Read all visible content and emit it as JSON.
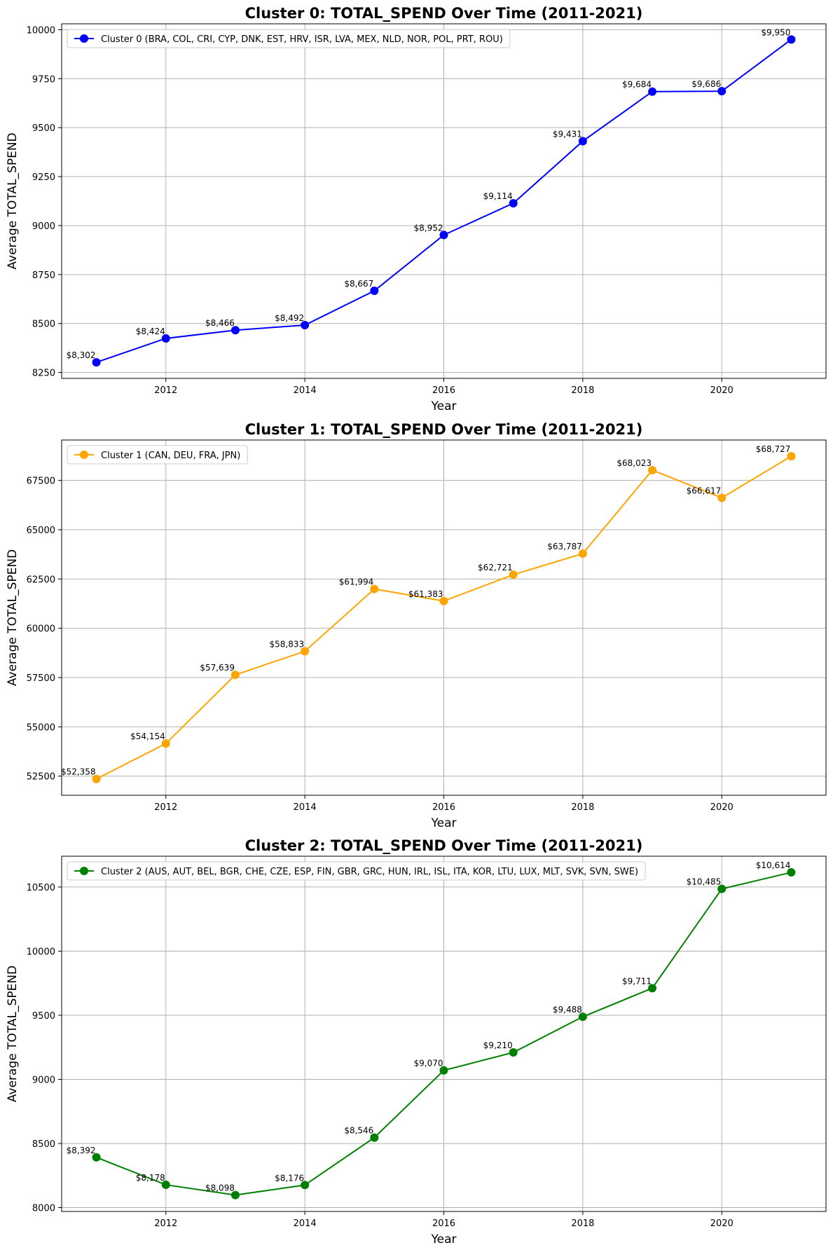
{
  "chart_data": [
    {
      "type": "line",
      "title": "Cluster 0: TOTAL_SPEND Over Time (2011-2021)",
      "xlabel": "Year",
      "ylabel": "Average TOTAL_SPEND",
      "xlim": [
        2010.5,
        2021.5
      ],
      "ylim": [
        8220,
        10030
      ],
      "xticks": [
        2012,
        2014,
        2016,
        2018,
        2020
      ],
      "yticks": [
        8250,
        8500,
        8750,
        9000,
        9250,
        9500,
        9750,
        10000
      ],
      "grid": true,
      "legend_position": "top-left",
      "color": "#0000ff",
      "series": [
        {
          "name": "Cluster 0 (BRA, COL, CRI, CYP, DNK, EST, HRV, ISR, LVA, MEX, NLD, NOR, POL, PRT, ROU)",
          "x": [
            2011,
            2012,
            2013,
            2014,
            2015,
            2016,
            2017,
            2018,
            2019,
            2020,
            2021
          ],
          "values": [
            8302,
            8424,
            8466,
            8492,
            8667,
            8952,
            9114,
            9431,
            9684,
            9686,
            9950
          ],
          "labels": [
            "$8,302",
            "$8,424",
            "$8,466",
            "$8,492",
            "$8,667",
            "$8,952",
            "$9,114",
            "$9,431",
            "$9,684",
            "$9,686",
            "$9,950"
          ]
        }
      ]
    },
    {
      "type": "line",
      "title": "Cluster 1: TOTAL_SPEND Over Time (2011-2021)",
      "xlabel": "Year",
      "ylabel": "Average TOTAL_SPEND",
      "xlim": [
        2010.5,
        2021.5
      ],
      "ylim": [
        51530,
        69550
      ],
      "xticks": [
        2012,
        2014,
        2016,
        2018,
        2020
      ],
      "yticks": [
        52500,
        55000,
        57500,
        60000,
        62500,
        65000,
        67500
      ],
      "grid": true,
      "legend_position": "top-left",
      "color": "#ffa500",
      "series": [
        {
          "name": "Cluster 1 (CAN, DEU, FRA, JPN)",
          "x": [
            2011,
            2012,
            2013,
            2014,
            2015,
            2016,
            2017,
            2018,
            2019,
            2020,
            2021
          ],
          "values": [
            52358,
            54154,
            57639,
            58833,
            61994,
            61383,
            62721,
            63787,
            68023,
            66617,
            68727
          ],
          "labels": [
            "$52,358",
            "$54,154",
            "$57,639",
            "$58,833",
            "$61,994",
            "$61,383",
            "$62,721",
            "$63,787",
            "$68,023",
            "$66,617",
            "$68,727"
          ]
        }
      ]
    },
    {
      "type": "line",
      "title": "Cluster 2: TOTAL_SPEND Over Time (2011-2021)",
      "xlabel": "Year",
      "ylabel": "Average TOTAL_SPEND",
      "xlim": [
        2010.5,
        2021.5
      ],
      "ylim": [
        7970,
        10740
      ],
      "xticks": [
        2012,
        2014,
        2016,
        2018,
        2020
      ],
      "yticks": [
        8000,
        8500,
        9000,
        9500,
        10000,
        10500
      ],
      "grid": true,
      "legend_position": "top-left",
      "color": "#008000",
      "series": [
        {
          "name": "Cluster 2 (AUS, AUT, BEL, BGR, CHE, CZE, ESP, FIN, GBR, GRC, HUN, IRL, ISL, ITA, KOR, LTU, LUX, MLT, SVK, SVN, SWE)",
          "x": [
            2011,
            2012,
            2013,
            2014,
            2015,
            2016,
            2017,
            2018,
            2019,
            2020,
            2021
          ],
          "values": [
            8392,
            8178,
            8098,
            8176,
            8546,
            9070,
            9210,
            9488,
            9711,
            10485,
            10614
          ],
          "labels": [
            "$8,392",
            "$8,178",
            "$8,098",
            "$8,176",
            "$8,546",
            "$9,070",
            "$9,210",
            "$9,488",
            "$9,711",
            "$10,485",
            "$10,614"
          ]
        }
      ]
    }
  ]
}
